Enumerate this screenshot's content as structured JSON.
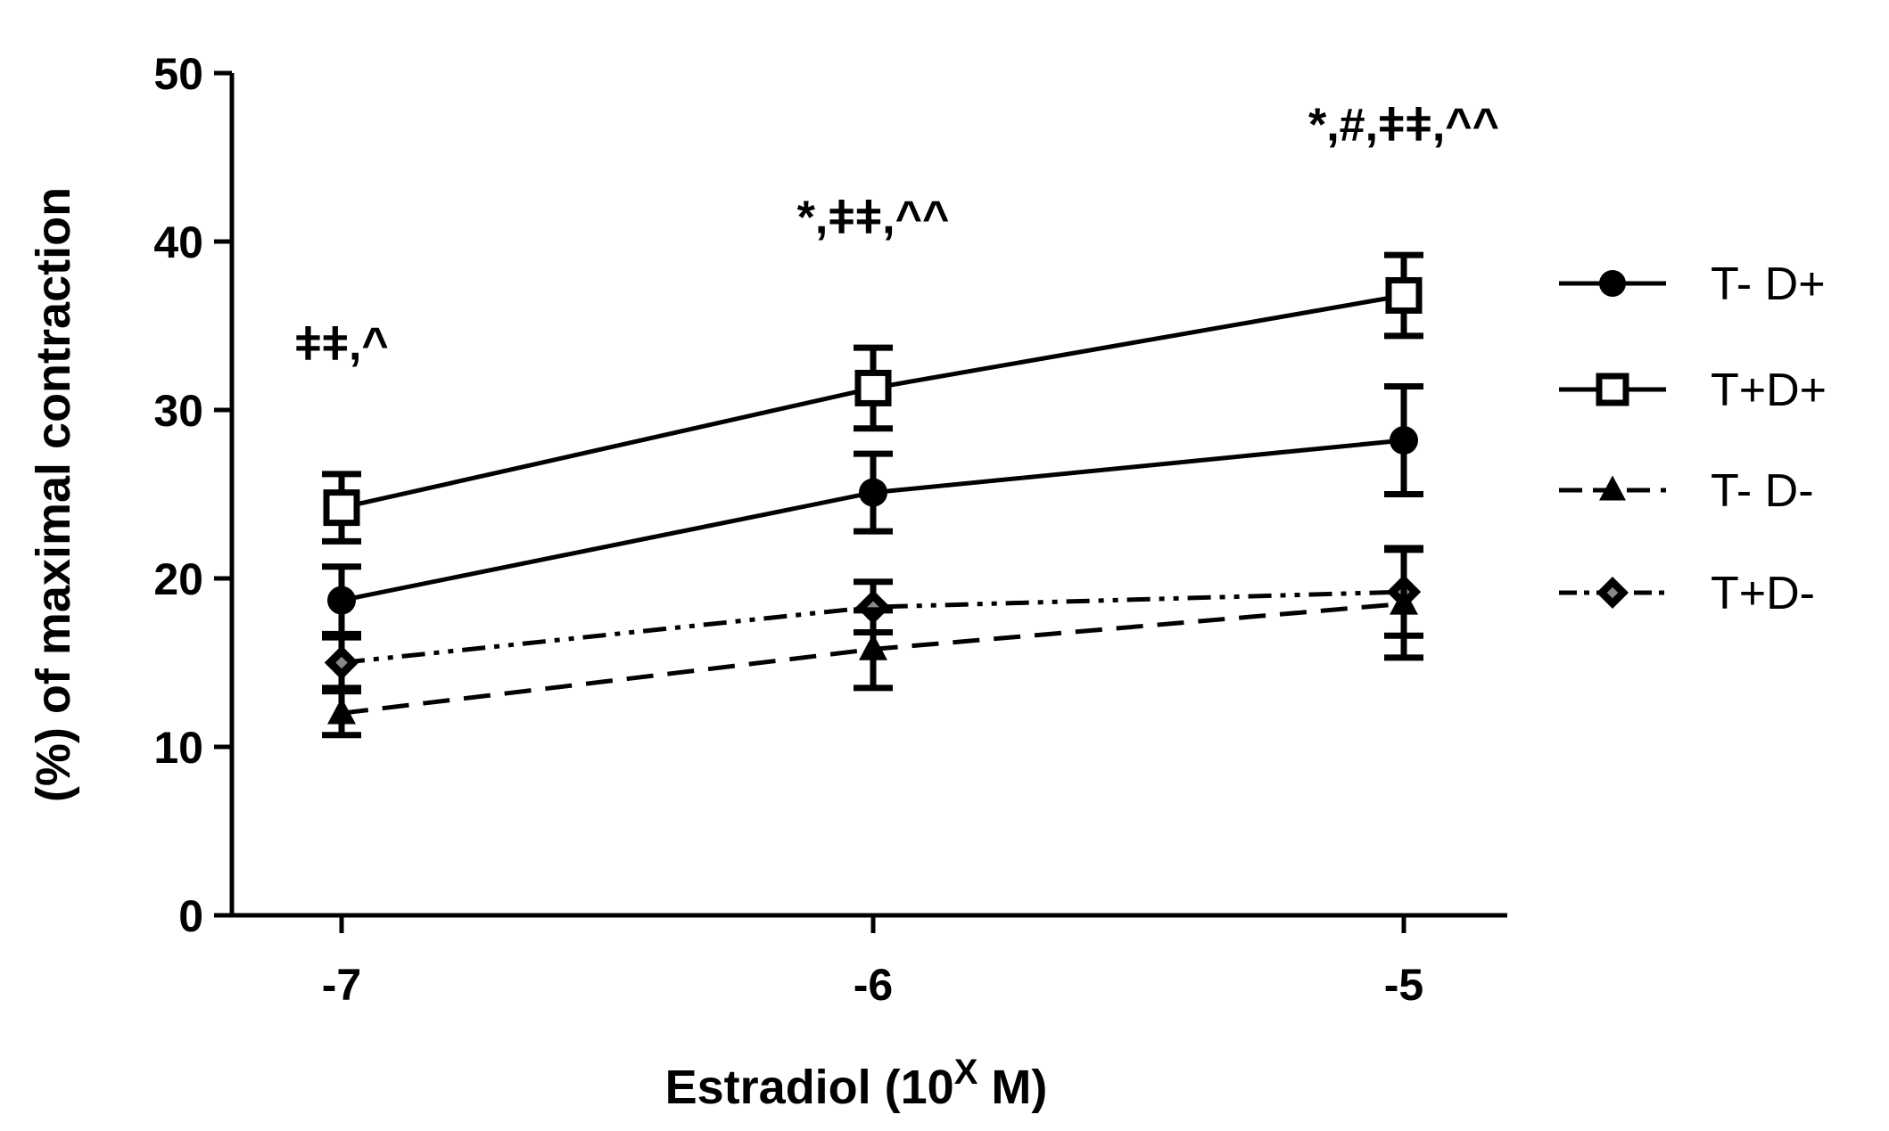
{
  "chart_data": {
    "type": "line",
    "xlabel": "Estradiol (10",
    "xlabel_sup": "X",
    "xlabel_end": " M)",
    "ylabel": "(%) of maximal contraction",
    "x": [
      -7,
      -6,
      -5
    ],
    "x_tick_labels": [
      "-7",
      "-6",
      "-5"
    ],
    "xlim": [
      -7.2,
      -4.8
    ],
    "ylim": [
      0,
      50
    ],
    "y_ticks": [
      0,
      10,
      20,
      30,
      40,
      50
    ],
    "y_tick_labels": [
      "0",
      "10",
      "20",
      "30",
      "40",
      "50"
    ],
    "grid": false,
    "legend": "right",
    "series": [
      {
        "name": "T- D+",
        "marker": "circle",
        "line": "solid",
        "values": [
          18.7,
          25.1,
          28.2
        ],
        "errors": [
          2.0,
          2.3,
          3.2
        ]
      },
      {
        "name": "T+D+",
        "marker": "open-square",
        "line": "solid",
        "values": [
          24.2,
          31.3,
          36.8
        ],
        "errors": [
          2.0,
          2.4,
          2.4
        ]
      },
      {
        "name": "T- D-",
        "marker": "triangle",
        "line": "dashed",
        "values": [
          12.0,
          15.8,
          18.5
        ],
        "errors": [
          1.3,
          2.3,
          3.2
        ]
      },
      {
        "name": "T+D-",
        "marker": "diamond",
        "line": "dash-dot-dot",
        "values": [
          15.0,
          18.3,
          19.2
        ],
        "errors": [
          1.5,
          1.5,
          2.6
        ]
      }
    ],
    "annotations": [
      {
        "x": -7,
        "y": 33,
        "text": "ǂǂ,^"
      },
      {
        "x": -6,
        "y": 40.5,
        "text": "*,ǂǂ,^^"
      },
      {
        "x": -5,
        "y": 46,
        "text": "*,#,ǂǂ,^^"
      }
    ]
  }
}
